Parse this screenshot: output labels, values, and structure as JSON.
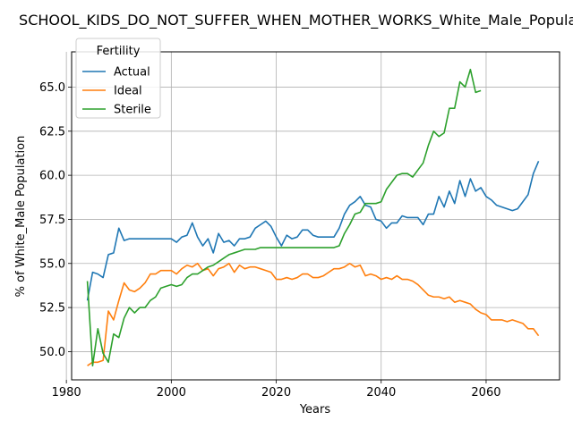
{
  "chart_data": {
    "type": "line",
    "title": "SCHOOL_KIDS_DO_NOT_SUFFER_WHEN_MOTHER_WORKS_White_Male_Population",
    "xlabel": "Years",
    "ylabel": "% of White_Male Population",
    "xlim": [
      1981,
      2074
    ],
    "ylim": [
      48.4,
      67.0
    ],
    "xticks": [
      1980,
      2000,
      2020,
      2040,
      2060
    ],
    "yticks": [
      50.0,
      52.5,
      55.0,
      57.5,
      60.0,
      62.5,
      65.0
    ],
    "grid": true,
    "legend": {
      "title": "Fertility",
      "position": "top-left"
    },
    "series": [
      {
        "name": "Actual",
        "color": "#1f77b4",
        "x": [
          1984,
          1985,
          1986,
          1987,
          1988,
          1989,
          1990,
          1991,
          1992,
          1993,
          1994,
          1995,
          1996,
          1997,
          1998,
          1999,
          2000,
          2001,
          2002,
          2003,
          2004,
          2005,
          2006,
          2007,
          2008,
          2009,
          2010,
          2011,
          2012,
          2013,
          2014,
          2015,
          2016,
          2017,
          2018,
          2019,
          2020,
          2021,
          2022,
          2023,
          2024,
          2025,
          2026,
          2027,
          2028,
          2029,
          2030,
          2031,
          2032,
          2033,
          2034,
          2035,
          2036,
          2037,
          2038,
          2039,
          2040,
          2041,
          2042,
          2043,
          2044,
          2045,
          2046,
          2047,
          2048,
          2049,
          2050,
          2051,
          2052,
          2053,
          2054,
          2055,
          2056,
          2057,
          2058,
          2059,
          2060,
          2061,
          2062,
          2063,
          2064,
          2065,
          2066,
          2067,
          2068,
          2069,
          2070
        ],
        "values": [
          52.9,
          54.5,
          54.4,
          54.2,
          55.5,
          55.6,
          57.0,
          56.3,
          56.4,
          56.4,
          56.4,
          56.4,
          56.4,
          56.4,
          56.4,
          56.4,
          56.4,
          56.2,
          56.5,
          56.6,
          57.3,
          56.5,
          56.0,
          56.4,
          55.6,
          56.7,
          56.2,
          56.3,
          56.0,
          56.4,
          56.4,
          56.5,
          57.0,
          57.2,
          57.4,
          57.1,
          56.5,
          56.0,
          56.6,
          56.4,
          56.5,
          56.9,
          56.9,
          56.6,
          56.5,
          56.5,
          56.5,
          56.5,
          57.0,
          57.8,
          58.3,
          58.5,
          58.8,
          58.3,
          58.2,
          57.5,
          57.4,
          57.0,
          57.3,
          57.3,
          57.7,
          57.6,
          57.6,
          57.6,
          57.2,
          57.8,
          57.8,
          58.8,
          58.2,
          59.1,
          58.4,
          59.7,
          58.8,
          59.8,
          59.1,
          59.3,
          58.8,
          58.6,
          58.3,
          58.2,
          58.1,
          58.0,
          58.1,
          58.5,
          58.9,
          60.1,
          60.8
        ]
      },
      {
        "name": "Ideal",
        "color": "#ff7f0e",
        "x": [
          1984,
          1985,
          1986,
          1987,
          1988,
          1989,
          1990,
          1991,
          1992,
          1993,
          1994,
          1995,
          1996,
          1997,
          1998,
          1999,
          2000,
          2001,
          2002,
          2003,
          2004,
          2005,
          2006,
          2007,
          2008,
          2009,
          2010,
          2011,
          2012,
          2013,
          2014,
          2015,
          2016,
          2017,
          2018,
          2019,
          2020,
          2021,
          2022,
          2023,
          2024,
          2025,
          2026,
          2027,
          2028,
          2029,
          2030,
          2031,
          2032,
          2033,
          2034,
          2035,
          2036,
          2037,
          2038,
          2039,
          2040,
          2041,
          2042,
          2043,
          2044,
          2045,
          2046,
          2047,
          2048,
          2049,
          2050,
          2051,
          2052,
          2053,
          2054,
          2055,
          2056,
          2057,
          2058,
          2059,
          2060,
          2061,
          2062,
          2063,
          2064,
          2065,
          2066,
          2067,
          2068,
          2069,
          2070
        ],
        "values": [
          49.2,
          49.4,
          49.4,
          49.5,
          52.3,
          51.8,
          52.9,
          53.9,
          53.5,
          53.4,
          53.6,
          53.9,
          54.4,
          54.4,
          54.6,
          54.6,
          54.6,
          54.4,
          54.7,
          54.9,
          54.8,
          55.0,
          54.6,
          54.7,
          54.3,
          54.7,
          54.8,
          55.0,
          54.5,
          54.9,
          54.7,
          54.8,
          54.8,
          54.7,
          54.6,
          54.5,
          54.1,
          54.1,
          54.2,
          54.1,
          54.2,
          54.4,
          54.4,
          54.2,
          54.2,
          54.3,
          54.5,
          54.7,
          54.7,
          54.8,
          55.0,
          54.8,
          54.9,
          54.3,
          54.4,
          54.3,
          54.1,
          54.2,
          54.1,
          54.3,
          54.1,
          54.1,
          54.0,
          53.8,
          53.5,
          53.2,
          53.1,
          53.1,
          53.0,
          53.1,
          52.8,
          52.9,
          52.8,
          52.7,
          52.4,
          52.2,
          52.1,
          51.8,
          51.8,
          51.8,
          51.7,
          51.8,
          51.7,
          51.6,
          51.3,
          51.3,
          50.9
        ]
      },
      {
        "name": "Sterile",
        "color": "#2ca02c",
        "x": [
          1984,
          1985,
          1986,
          1987,
          1988,
          1989,
          1990,
          1991,
          1992,
          1993,
          1994,
          1995,
          1996,
          1997,
          1998,
          1999,
          2000,
          2001,
          2002,
          2003,
          2004,
          2005,
          2006,
          2007,
          2008,
          2009,
          2010,
          2011,
          2012,
          2013,
          2014,
          2015,
          2016,
          2017,
          2018,
          2019,
          2020,
          2021,
          2022,
          2023,
          2024,
          2025,
          2026,
          2027,
          2028,
          2029,
          2030,
          2031,
          2032,
          2033,
          2034,
          2035,
          2036,
          2037,
          2038,
          2039,
          2040,
          2041,
          2042,
          2043,
          2044,
          2045,
          2046,
          2047,
          2048,
          2049,
          2050,
          2051,
          2052,
          2053,
          2054,
          2055,
          2056,
          2057,
          2058,
          2059
        ],
        "values": [
          54.0,
          49.2,
          51.3,
          49.9,
          49.4,
          51.0,
          50.8,
          51.9,
          52.5,
          52.2,
          52.5,
          52.5,
          52.9,
          53.1,
          53.6,
          53.7,
          53.8,
          53.7,
          53.8,
          54.2,
          54.4,
          54.4,
          54.6,
          54.8,
          54.9,
          55.1,
          55.3,
          55.5,
          55.6,
          55.7,
          55.8,
          55.8,
          55.8,
          55.9,
          55.9,
          55.9,
          55.9,
          55.9,
          55.9,
          55.9,
          55.9,
          55.9,
          55.9,
          55.9,
          55.9,
          55.9,
          55.9,
          55.9,
          56.0,
          56.7,
          57.2,
          57.8,
          57.9,
          58.4,
          58.4,
          58.4,
          58.5,
          59.2,
          59.6,
          60.0,
          60.1,
          60.1,
          59.9,
          60.3,
          60.7,
          61.7,
          62.5,
          62.2,
          62.4,
          63.8,
          63.8,
          65.3,
          65.0,
          66.0,
          64.7,
          64.8
        ]
      }
    ]
  }
}
